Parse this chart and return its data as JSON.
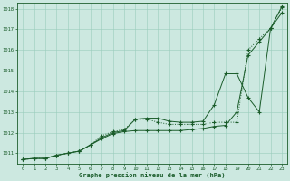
{
  "xlabel": "Graphe pression niveau de la mer (hPa)",
  "xlim": [
    -0.5,
    23.5
  ],
  "ylim": [
    1010.5,
    1018.3
  ],
  "yticks": [
    1011,
    1012,
    1013,
    1014,
    1015,
    1016,
    1017,
    1018
  ],
  "xticks": [
    0,
    1,
    2,
    3,
    4,
    5,
    6,
    7,
    8,
    9,
    10,
    11,
    12,
    13,
    14,
    15,
    16,
    17,
    18,
    19,
    20,
    21,
    22,
    23
  ],
  "background_color": "#cce8e0",
  "grid_color": "#99ccbb",
  "line_color": "#1a5c2a",
  "hours": [
    0,
    1,
    2,
    3,
    4,
    5,
    6,
    7,
    8,
    9,
    10,
    11,
    12,
    13,
    14,
    15,
    16,
    17,
    18,
    19,
    20,
    21,
    22,
    23
  ],
  "curve1": [
    1010.7,
    1010.75,
    1010.75,
    1010.9,
    1011.0,
    1011.1,
    1011.4,
    1011.7,
    1011.95,
    1012.05,
    1012.1,
    1012.1,
    1012.1,
    1012.1,
    1012.1,
    1012.15,
    1012.2,
    1012.3,
    1012.35,
    1013.0,
    1015.75,
    1016.4,
    1017.05,
    1018.1
  ],
  "curve2": [
    1010.7,
    1010.75,
    1010.75,
    1010.9,
    1011.0,
    1011.1,
    1011.4,
    1011.75,
    1012.0,
    1012.1,
    1012.65,
    1012.7,
    1012.7,
    1012.55,
    1012.5,
    1012.5,
    1012.55,
    1013.35,
    1014.85,
    1014.85,
    1013.7,
    1013.0,
    1017.05,
    1017.8
  ],
  "curve3": [
    1010.7,
    1010.75,
    1010.75,
    1010.9,
    1011.0,
    1011.1,
    1011.4,
    1011.85,
    1012.05,
    1012.15,
    1012.65,
    1012.65,
    1012.5,
    1012.4,
    1012.4,
    1012.4,
    1012.4,
    1012.5,
    1012.5,
    1012.5,
    1016.0,
    1016.55,
    1017.05,
    1018.05
  ]
}
